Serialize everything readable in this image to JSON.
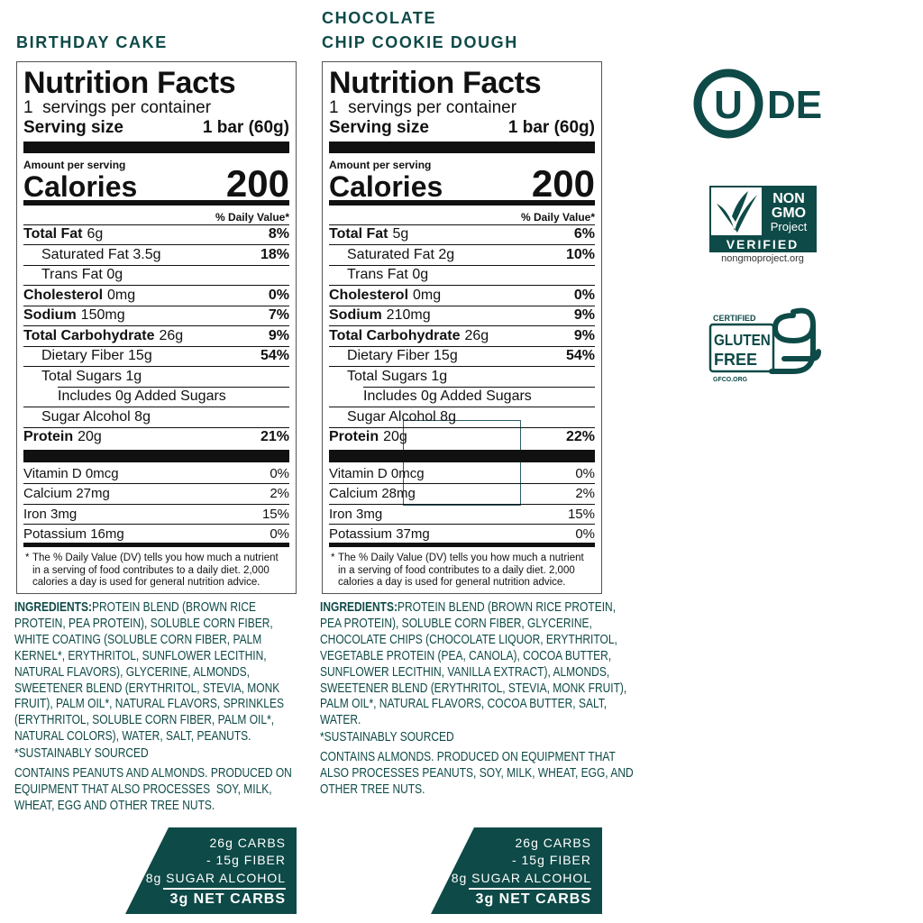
{
  "panels": [
    {
      "flavor": [
        "BIRTHDAY CAKE"
      ],
      "facts": {
        "title": "Nutrition Facts",
        "servings": "1  servings per container",
        "serving_size_label": "Serving size",
        "serving_size": "1 bar (60g)",
        "amount_per_serving": "Amount per serving",
        "calories_label": "Calories",
        "calories": "200",
        "daily_value_header": "% Daily Value*",
        "rows": [
          {
            "name": "Total Fat",
            "amount": "6g",
            "dv": "8%"
          },
          {
            "name": "Saturated Fat 3.5g",
            "dv": "18%"
          },
          {
            "name": "Trans Fat 0g"
          },
          {
            "name": "Cholesterol",
            "amount": "0mg",
            "dv": "0%"
          },
          {
            "name": "Sodium",
            "amount": "150mg",
            "dv": "7%"
          },
          {
            "name": "Total Carbohydrate",
            "amount": "26g",
            "dv": "9%"
          },
          {
            "name": "Dietary Fiber 15g",
            "dv": "54%"
          },
          {
            "name": "Total Sugars 1g"
          },
          {
            "name": "Includes 0g Added Sugars"
          },
          {
            "name": "Sugar Alcohol 8g"
          },
          {
            "name": "Protein",
            "amount": "20g",
            "dv": "21%"
          }
        ],
        "vitamins": [
          {
            "name": "Vitamin D 0mcg",
            "dv": "0%"
          },
          {
            "name": "Calcium 27mg",
            "dv": "2%"
          },
          {
            "name": "Iron 3mg",
            "dv": "15%"
          },
          {
            "name": "Potassium 16mg",
            "dv": "0%"
          }
        ],
        "footnote_mark": "*",
        "footnote": [
          "The % Daily Value (DV) tells you how much a nutrient",
          "in a serving of food contributes to a daily diet. 2,000",
          "calories a day is used for general nutrition advice."
        ]
      },
      "ingredients_label": "INGREDIENTS:",
      "ingredients": [
        "PROTEIN BLEND (BROWN RICE",
        "PROTEIN, PEA PROTEIN), SOLUBLE CORN FIBER,",
        "WHITE COATING (SOLUBLE CORN FIBER, PALM",
        "KERNEL*, ERYTHRITOL, SUNFLOWER LECITHIN,",
        "NATURAL FLAVORS), GLYCERINE, ALMONDS,",
        "SWEETENER BLEND (ERYTHRITOL, STEVIA, MONK",
        "FRUIT), PALM OIL*, NATURAL FLAVORS, SPRINKLES",
        "(ERYTHRITOL, SOLUBLE CORN FIBER, PALM OIL*,",
        "NATURAL COLORS), WATER, SALT, PEANUTS."
      ],
      "sourcing": "*SUSTAINABLY SOURCED",
      "allergens": [
        "CONTAINS PEANUTS AND ALMONDS. PRODUCED ON",
        "EQUIPMENT THAT ALSO PROCESSES  SOY, MILK,",
        "WHEAT, EGG AND OTHER TREE NUTS."
      ],
      "net_carbs": [
        "26g CARBS",
        "- 15g FIBER",
        "- 8g SUGAR ALCOHOL",
        "3g NET CARBS"
      ]
    },
    {
      "flavor": [
        "CHOCOLATE",
        "CHIP COOKIE DOUGH"
      ],
      "facts": {
        "title": "Nutrition Facts",
        "servings": "1  servings per container",
        "serving_size_label": "Serving size",
        "serving_size": "1 bar (60g)",
        "amount_per_serving": "Amount per serving",
        "calories_label": "Calories",
        "calories": "200",
        "daily_value_header": "% Daily Value*",
        "rows": [
          {
            "name": "Total Fat",
            "amount": "5g",
            "dv": "6%"
          },
          {
            "name": "Saturated Fat 2g",
            "dv": "10%"
          },
          {
            "name": "Trans Fat 0g"
          },
          {
            "name": "Cholesterol",
            "amount": "0mg",
            "dv": "0%"
          },
          {
            "name": "Sodium",
            "amount": "210mg",
            "dv": "9%"
          },
          {
            "name": "Total Carbohydrate",
            "amount": "26g",
            "dv": "9%"
          },
          {
            "name": "Dietary Fiber 15g",
            "dv": "54%"
          },
          {
            "name": "Total Sugars 1g"
          },
          {
            "name": "Includes 0g Added Sugars"
          },
          {
            "name": "Sugar Alcohol 8g"
          },
          {
            "name": "Protein",
            "amount": "20g",
            "dv": "22%"
          }
        ],
        "vitamins": [
          {
            "name": "Vitamin D 0mcg",
            "dv": "0%"
          },
          {
            "name": "Calcium 28mg",
            "dv": "2%"
          },
          {
            "name": "Iron 3mg",
            "dv": "15%"
          },
          {
            "name": "Potassium 37mg",
            "dv": "0%"
          }
        ],
        "footnote_mark": "*",
        "footnote": [
          "The % Daily Value (DV) tells you how much a nutrient",
          "in a serving of food contributes to a daily diet. 2,000",
          "calories a day is used for general nutrition advice."
        ]
      },
      "ingredients_label": "INGREDIENTS:",
      "ingredients": [
        "PROTEIN BLEND (BROWN RICE PROTEIN,",
        "PEA PROTEIN), SOLUBLE CORN FIBER, GLYCERINE,",
        "CHOCOLATE CHIPS (CHOCOLATE LIQUOR, ERYTHRITOL,",
        "VEGETABLE PROTEIN (PEA, CANOLA), COCOA BUTTER,",
        "SUNFLOWER LECITHIN, VANILLA EXTRACT), ALMONDS,",
        "SWEETENER BLEND (ERYTHRITOL, STEVIA, MONK FRUIT),",
        "PALM OIL*, NATURAL FLAVORS, COCOA BUTTER, SALT,",
        "WATER."
      ],
      "sourcing": "*SUSTAINABLY SOURCED",
      "allergens": [
        "CONTAINS ALMONDS. PRODUCED ON EQUIPMENT THAT",
        "ALSO PROCESSES PEANUTS, SOY, MILK, WHEAT, EGG, AND",
        "OTHER TREE NUTS."
      ],
      "net_carbs": [
        "26g CARBS",
        "- 15g FIBER",
        "- 8g SUGAR ALCOHOL",
        "3g NET CARBS"
      ]
    }
  ],
  "badges": {
    "kosher": {
      "symbol": "U",
      "text": "DE"
    },
    "non_gmo": {
      "line1": "NON",
      "line2": "GMO",
      "line3": "Project",
      "band": "VERIFIED",
      "url": "nongmoproject.org"
    },
    "gluten_free": {
      "top": "CERTIFIED",
      "line1": "GLUTEN",
      "line2": "FREE",
      "url": "GFCO.ORG"
    }
  }
}
